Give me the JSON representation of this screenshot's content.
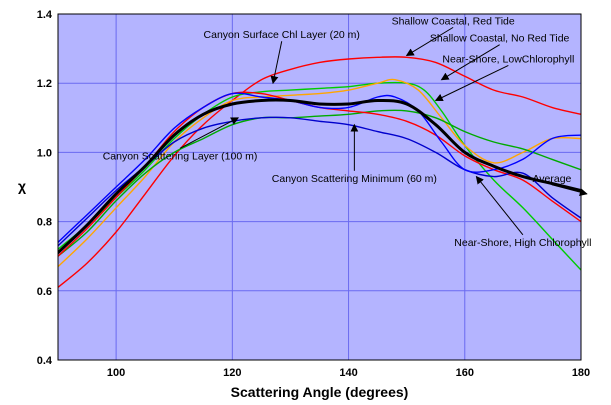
{
  "chart_data": {
    "type": "line",
    "title": "",
    "xlabel": "Scattering Angle (degrees)",
    "ylabel": "χ",
    "xlim": [
      90,
      180
    ],
    "ylim": [
      0.4,
      1.4
    ],
    "xticks": [
      100,
      120,
      140,
      160,
      180
    ],
    "yticks": [
      0.4,
      0.6,
      0.8,
      1.0,
      1.2,
      1.4
    ],
    "grid": true,
    "background_color": "#b4b4ff",
    "grid_color": "#6a6af0",
    "series": [
      {
        "color": "#ff0000",
        "points": [
          [
            90,
            0.61
          ],
          [
            95,
            0.68
          ],
          [
            100,
            0.77
          ],
          [
            105,
            0.88
          ],
          [
            110,
            0.99
          ],
          [
            115,
            1.08
          ],
          [
            120,
            1.15
          ],
          [
            125,
            1.21
          ],
          [
            130,
            1.24
          ],
          [
            135,
            1.26
          ],
          [
            140,
            1.27
          ],
          [
            145,
            1.275
          ],
          [
            150,
            1.275
          ],
          [
            155,
            1.26
          ],
          [
            160,
            1.22
          ],
          [
            165,
            1.18
          ],
          [
            170,
            1.16
          ],
          [
            175,
            1.13
          ],
          [
            180,
            1.11
          ]
        ]
      },
      {
        "color": "#00cc00",
        "points": [
          [
            90,
            0.72
          ],
          [
            95,
            0.79
          ],
          [
            100,
            0.87
          ],
          [
            105,
            0.95
          ],
          [
            110,
            1.04
          ],
          [
            115,
            1.11
          ],
          [
            120,
            1.16
          ],
          [
            125,
            1.175
          ],
          [
            130,
            1.18
          ],
          [
            135,
            1.185
          ],
          [
            140,
            1.19
          ],
          [
            145,
            1.2
          ],
          [
            150,
            1.2
          ],
          [
            153,
            1.18
          ],
          [
            156,
            1.12
          ],
          [
            160,
            1.02
          ],
          [
            165,
            0.92
          ],
          [
            170,
            0.84
          ],
          [
            175,
            0.75
          ],
          [
            180,
            0.66
          ]
        ]
      },
      {
        "color": "#ffa500",
        "points": [
          [
            90,
            0.67
          ],
          [
            95,
            0.75
          ],
          [
            100,
            0.84
          ],
          [
            105,
            0.93
          ],
          [
            110,
            1.03
          ],
          [
            115,
            1.1
          ],
          [
            120,
            1.15
          ],
          [
            125,
            1.16
          ],
          [
            130,
            1.165
          ],
          [
            135,
            1.17
          ],
          [
            140,
            1.18
          ],
          [
            145,
            1.2
          ],
          [
            148,
            1.21
          ],
          [
            152,
            1.18
          ],
          [
            156,
            1.1
          ],
          [
            160,
            1.02
          ],
          [
            165,
            0.97
          ],
          [
            170,
            1.0
          ],
          [
            175,
            1.04
          ],
          [
            180,
            1.04
          ]
        ]
      },
      {
        "color": "#00aa00",
        "points": [
          [
            90,
            0.7
          ],
          [
            95,
            0.77
          ],
          [
            100,
            0.86
          ],
          [
            105,
            0.94
          ],
          [
            110,
            1.0
          ],
          [
            115,
            1.04
          ],
          [
            120,
            1.08
          ],
          [
            125,
            1.1
          ],
          [
            130,
            1.1
          ],
          [
            135,
            1.105
          ],
          [
            140,
            1.11
          ],
          [
            145,
            1.12
          ],
          [
            150,
            1.12
          ],
          [
            155,
            1.1
          ],
          [
            160,
            1.06
          ],
          [
            165,
            1.03
          ],
          [
            170,
            1.01
          ],
          [
            175,
            0.98
          ],
          [
            180,
            0.95
          ]
        ]
      },
      {
        "color": "#ff0000",
        "points": [
          [
            90,
            0.7
          ],
          [
            95,
            0.78
          ],
          [
            100,
            0.87
          ],
          [
            105,
            0.96
          ],
          [
            110,
            1.06
          ],
          [
            115,
            1.13
          ],
          [
            120,
            1.17
          ],
          [
            125,
            1.17
          ],
          [
            130,
            1.15
          ],
          [
            135,
            1.13
          ],
          [
            140,
            1.12
          ],
          [
            145,
            1.11
          ],
          [
            150,
            1.09
          ],
          [
            155,
            1.05
          ],
          [
            160,
            0.99
          ],
          [
            165,
            0.95
          ],
          [
            170,
            0.92
          ],
          [
            175,
            0.86
          ],
          [
            180,
            0.8
          ]
        ]
      },
      {
        "color": "#0000cc",
        "points": [
          [
            90,
            0.73
          ],
          [
            95,
            0.81
          ],
          [
            100,
            0.89
          ],
          [
            105,
            0.96
          ],
          [
            110,
            1.03
          ],
          [
            115,
            1.07
          ],
          [
            120,
            1.09
          ],
          [
            125,
            1.1
          ],
          [
            130,
            1.1
          ],
          [
            135,
            1.09
          ],
          [
            140,
            1.08
          ],
          [
            145,
            1.06
          ],
          [
            150,
            1.04
          ],
          [
            155,
            1.0
          ],
          [
            160,
            0.95
          ],
          [
            165,
            0.93
          ],
          [
            170,
            0.94
          ],
          [
            175,
            0.87
          ],
          [
            180,
            0.81
          ]
        ]
      },
      {
        "color": "#0000ff",
        "points": [
          [
            90,
            0.74
          ],
          [
            95,
            0.82
          ],
          [
            100,
            0.9
          ],
          [
            105,
            0.98
          ],
          [
            110,
            1.07
          ],
          [
            115,
            1.13
          ],
          [
            120,
            1.17
          ],
          [
            125,
            1.16
          ],
          [
            130,
            1.15
          ],
          [
            135,
            1.13
          ],
          [
            140,
            1.13
          ],
          [
            145,
            1.16
          ],
          [
            148,
            1.16
          ],
          [
            152,
            1.12
          ],
          [
            156,
            1.03
          ],
          [
            160,
            0.95
          ],
          [
            165,
            0.95
          ],
          [
            170,
            0.98
          ],
          [
            175,
            1.04
          ],
          [
            180,
            1.05
          ]
        ]
      },
      {
        "color": "#000000",
        "bold": true,
        "points": [
          [
            90,
            0.71
          ],
          [
            95,
            0.79
          ],
          [
            100,
            0.88
          ],
          [
            105,
            0.96
          ],
          [
            110,
            1.05
          ],
          [
            115,
            1.11
          ],
          [
            120,
            1.14
          ],
          [
            125,
            1.15
          ],
          [
            130,
            1.15
          ],
          [
            135,
            1.14
          ],
          [
            140,
            1.14
          ],
          [
            145,
            1.15
          ],
          [
            150,
            1.14
          ],
          [
            155,
            1.08
          ],
          [
            160,
            1.0
          ],
          [
            165,
            0.96
          ],
          [
            170,
            0.93
          ],
          [
            175,
            0.91
          ],
          [
            180,
            0.89
          ]
        ]
      }
    ],
    "annotations": [
      {
        "text": "Canyon Surface Chl Layer (20 m)",
        "at": [
          128.5,
          1.33
        ],
        "arrow_to": [
          127,
          1.2
        ]
      },
      {
        "text": "Shallow Coastal, Red Tide",
        "at": [
          158,
          1.37
        ],
        "arrow_to": [
          150,
          1.28
        ]
      },
      {
        "text": "Shallow Coastal, No Red Tide",
        "at": [
          166,
          1.32
        ],
        "arrow_to": [
          156,
          1.21
        ]
      },
      {
        "text": "Near-Shore, LowChlorophyll",
        "at": [
          167.5,
          1.26
        ],
        "arrow_to": [
          155,
          1.15
        ]
      },
      {
        "text": "Canyon Scattering Layer (100 m)",
        "at": [
          111,
          0.98
        ],
        "arrow_to": [
          121,
          1.1
        ]
      },
      {
        "text": "Canyon Scattering Minimum (60 m)",
        "at": [
          141,
          0.915
        ],
        "arrow_to": [
          141,
          1.08
        ]
      },
      {
        "text": "Average",
        "at": [
          175,
          0.915
        ],
        "arrow_to": [
          181,
          0.88
        ]
      },
      {
        "text": "Near-Shore, High Chlorophyll",
        "at": [
          170,
          0.73
        ],
        "arrow_to": [
          162,
          0.93
        ]
      }
    ]
  }
}
